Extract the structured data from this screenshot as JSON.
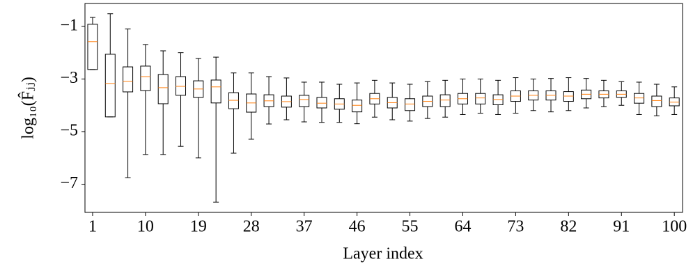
{
  "chart_data": {
    "type": "box",
    "xlabel": "Layer index",
    "ylabel": "log₁₀(F̂ⱼⱼ)",
    "x": [
      1,
      4,
      7,
      10,
      13,
      16,
      19,
      22,
      25,
      28,
      31,
      34,
      37,
      40,
      43,
      46,
      49,
      52,
      55,
      58,
      61,
      64,
      67,
      70,
      73,
      76,
      79,
      82,
      85,
      88,
      91,
      94,
      97,
      100
    ],
    "whisker_high": [
      -0.66,
      -0.52,
      -1.1,
      -1.69,
      -1.93,
      -2.0,
      -2.22,
      -2.17,
      -2.77,
      -2.77,
      -2.91,
      -2.96,
      -3.12,
      -3.12,
      -3.2,
      -3.15,
      -3.05,
      -3.15,
      -3.2,
      -3.1,
      -3.05,
      -3.0,
      -3.0,
      -3.05,
      -2.95,
      -3.0,
      -2.98,
      -2.95,
      -2.98,
      -3.05,
      -3.1,
      -3.12,
      -3.2,
      -3.3
    ],
    "q3": [
      -0.92,
      -2.06,
      -2.54,
      -2.51,
      -2.83,
      -2.91,
      -3.07,
      -3.04,
      -3.52,
      -3.57,
      -3.6,
      -3.65,
      -3.62,
      -3.7,
      -3.75,
      -3.8,
      -3.55,
      -3.7,
      -3.75,
      -3.65,
      -3.6,
      -3.55,
      -3.55,
      -3.6,
      -3.45,
      -3.45,
      -3.45,
      -3.48,
      -3.42,
      -3.45,
      -3.45,
      -3.55,
      -3.65,
      -3.72
    ],
    "median": [
      -1.58,
      -3.17,
      -3.09,
      -2.91,
      -3.33,
      -3.28,
      -3.38,
      -3.3,
      -3.81,
      -3.91,
      -3.83,
      -3.86,
      -3.78,
      -3.92,
      -3.95,
      -4.0,
      -3.75,
      -3.9,
      -3.95,
      -3.85,
      -3.8,
      -3.75,
      -3.72,
      -3.78,
      -3.65,
      -3.62,
      -3.62,
      -3.65,
      -3.58,
      -3.58,
      -3.58,
      -3.72,
      -3.82,
      -3.88
    ],
    "q1": [
      -2.64,
      -4.44,
      -3.49,
      -3.44,
      -3.94,
      -3.62,
      -3.7,
      -3.91,
      -4.13,
      -4.26,
      -4.05,
      -4.07,
      -4.05,
      -4.1,
      -4.15,
      -4.25,
      -3.95,
      -4.1,
      -4.2,
      -4.05,
      -4.05,
      -3.95,
      -3.95,
      -3.98,
      -3.85,
      -3.8,
      -3.8,
      -3.85,
      -3.75,
      -3.72,
      -3.7,
      -3.92,
      -4.05,
      -4.02
    ],
    "whisker_low": [
      -2.64,
      -4.44,
      -6.75,
      -5.87,
      -5.87,
      -5.56,
      -6.0,
      -7.68,
      -5.82,
      -5.29,
      -4.71,
      -4.55,
      -4.63,
      -4.65,
      -4.65,
      -4.7,
      -4.45,
      -4.55,
      -4.6,
      -4.5,
      -4.45,
      -4.35,
      -4.3,
      -4.35,
      -4.3,
      -4.2,
      -4.25,
      -4.2,
      -4.1,
      -4.05,
      -4.0,
      -4.35,
      -4.4,
      -4.35
    ],
    "box_color": "#000000",
    "median_color": "#ff7f0e",
    "xlim": [
      -0.3,
      101.4
    ],
    "ylim": [
      -8.07,
      -0.13
    ],
    "xticks": [
      1,
      10,
      19,
      28,
      37,
      46,
      55,
      64,
      73,
      82,
      91,
      100
    ],
    "yticks": [
      {
        "value": -1,
        "label": "−1"
      },
      {
        "value": -3,
        "label": "−3"
      },
      {
        "value": -5,
        "label": "−5"
      },
      {
        "value": -7,
        "label": "−7"
      }
    ]
  }
}
